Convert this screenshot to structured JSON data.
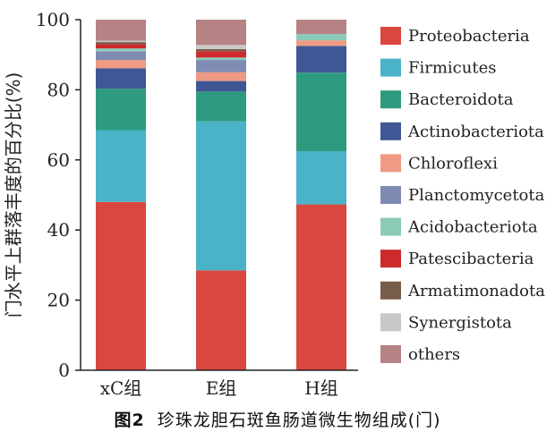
{
  "chart_data": {
    "type": "bar",
    "stacked": true,
    "categories": [
      "xC组",
      "E组",
      "H组"
    ],
    "ylabel": "门水平上群落丰度的百分比(%)",
    "ylim": [
      0,
      100
    ],
    "yticks": [
      0,
      20,
      40,
      60,
      80,
      100
    ],
    "legend_position": "right",
    "series": [
      {
        "name": "Proteobacteria",
        "color": "#d9473f",
        "values": [
          48.0,
          28.5,
          47.3
        ]
      },
      {
        "name": "Firmicutes",
        "color": "#4bb3c8",
        "values": [
          20.5,
          42.5,
          15.2
        ]
      },
      {
        "name": "Bacteroidota",
        "color": "#2e9a7f",
        "values": [
          11.8,
          8.5,
          22.4
        ]
      },
      {
        "name": "Actinobacteriota",
        "color": "#3f5794",
        "values": [
          5.8,
          3.0,
          7.6
        ]
      },
      {
        "name": "Chloroflexi",
        "color": "#ee9a84",
        "values": [
          2.4,
          2.5,
          1.6
        ]
      },
      {
        "name": "Planctomycetota",
        "color": "#7f8bb2",
        "values": [
          2.5,
          3.5,
          0.0
        ]
      },
      {
        "name": "Acidobacteriota",
        "color": "#8ccab8",
        "values": [
          0.8,
          0.7,
          1.8
        ]
      },
      {
        "name": "Patescibacteria",
        "color": "#cc2a2d",
        "values": [
          1.2,
          1.8,
          0.0
        ]
      },
      {
        "name": "Armatimonadota",
        "color": "#775c49",
        "values": [
          0.6,
          0.6,
          0.0
        ]
      },
      {
        "name": "Synergistota",
        "color": "#c8c8c8",
        "values": [
          0.4,
          1.2,
          0.0
        ]
      },
      {
        "name": "others",
        "color": "#b68283",
        "values": [
          6.0,
          7.2,
          4.1
        ]
      }
    ]
  },
  "caption": {
    "figure_number": "图2",
    "text": "珍珠龙胆石斑鱼肠道微生物组成(门)"
  }
}
